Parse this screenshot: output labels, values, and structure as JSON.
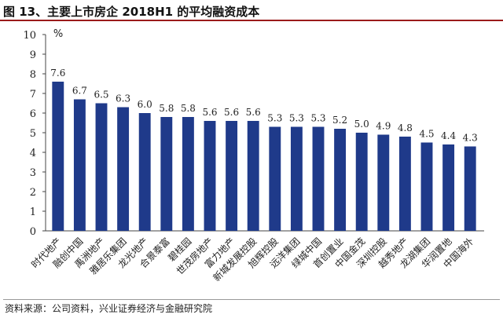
{
  "header": {
    "title": "图 13、主要上市房企 2018H1 的平均融资成本"
  },
  "footer": {
    "source": "资料来源：公司资料，兴业证券经济与金融研究院"
  },
  "chart_data": {
    "type": "bar",
    "ylabel": "%",
    "ylim": [
      0,
      10
    ],
    "yticks": [
      0,
      1,
      2,
      3,
      4,
      5,
      6,
      7,
      8,
      9,
      10
    ],
    "grid": false,
    "bar_color": "#1f3a8a",
    "categories": [
      "时代地产",
      "融创中国",
      "禹洲地产",
      "雅居乐集团",
      "龙光地产",
      "合景泰富",
      "碧桂园",
      "世茂房地产",
      "富力地产",
      "新城发展控股",
      "旭辉控股",
      "远洋集团",
      "绿城中国",
      "首创置业",
      "中国金茂",
      "深圳控股",
      "越秀地产",
      "龙湖集团",
      "华润置地",
      "中国海外"
    ],
    "values": [
      7.6,
      6.7,
      6.5,
      6.3,
      6.0,
      5.8,
      5.8,
      5.6,
      5.6,
      5.6,
      5.3,
      5.3,
      5.3,
      5.2,
      5.0,
      4.9,
      4.8,
      4.5,
      4.4,
      4.3
    ],
    "value_labels": [
      "7.6",
      "6.7",
      "6.5",
      "6.3",
      "6.0",
      "5.8",
      "5.8",
      "5.6",
      "5.6",
      "5.6",
      "5.3",
      "5.3",
      "5.3",
      "5.2",
      "5.0",
      "4.9",
      "4.8",
      "4.5",
      "4.4",
      "4.3"
    ]
  }
}
